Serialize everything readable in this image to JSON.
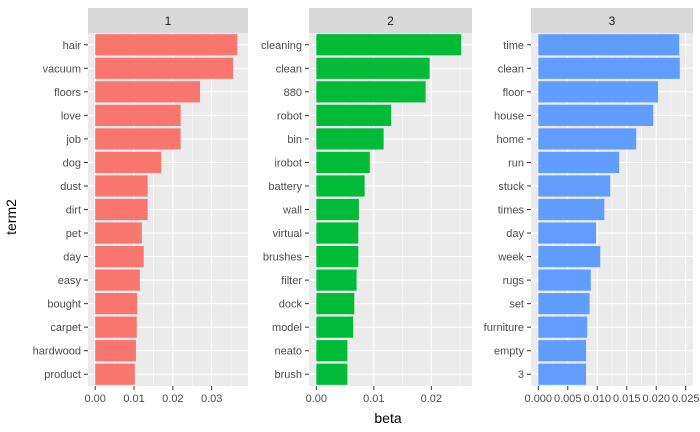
{
  "chart_data": {
    "type": "bar",
    "orientation": "horizontal",
    "faceted": true,
    "xlabel": "beta",
    "ylabel": "term2",
    "grid": true,
    "legend": "none",
    "background": "#EBEBEB",
    "strip_background": "#D9D9D9",
    "panels": [
      {
        "label": "1",
        "color": "#F8766D",
        "xlim": [
          0,
          0.0375
        ],
        "ticks": [
          0,
          0.01,
          0.02,
          0.03
        ],
        "tick_labels": [
          "0.00",
          "0.01",
          "0.02",
          "0.03"
        ],
        "categories": [
          "hair",
          "vacuum",
          "floors",
          "love",
          "job",
          "dog",
          "dust",
          "dirt",
          "pet",
          "day",
          "easy",
          "bought",
          "carpet",
          "hardwood",
          "product"
        ],
        "values": [
          0.0366,
          0.0355,
          0.027,
          0.022,
          0.022,
          0.017,
          0.0135,
          0.0135,
          0.012,
          0.0125,
          0.0115,
          0.0108,
          0.0107,
          0.0105,
          0.0102
        ]
      },
      {
        "label": "2",
        "color": "#00BA38",
        "xlim": [
          0,
          0.0258
        ],
        "ticks": [
          0,
          0.01,
          0.02
        ],
        "tick_labels": [
          "0.00",
          "0.01",
          "0.02"
        ],
        "categories": [
          "cleaning",
          "clean",
          "880",
          "robot",
          "bin",
          "irobot",
          "battery",
          "wall",
          "virtual",
          "brushes",
          "filter",
          "dock",
          "model",
          "neato",
          "brush"
        ],
        "values": [
          0.0252,
          0.0197,
          0.019,
          0.013,
          0.0117,
          0.0093,
          0.0084,
          0.0074,
          0.0073,
          0.0073,
          0.007,
          0.0066,
          0.0064,
          0.0054,
          0.0054
        ]
      },
      {
        "label": "3",
        "color": "#619CFF",
        "xlim": [
          0,
          0.025
        ],
        "ticks": [
          0,
          0.005,
          0.01,
          0.015,
          0.02,
          0.025
        ],
        "tick_labels": [
          "0.000",
          "0.005",
          "0.010",
          "0.015",
          "0.020",
          "0.025"
        ],
        "categories": [
          "time",
          "clean",
          "floor",
          "house",
          "home",
          "run",
          "stuck",
          "times",
          "day",
          "week",
          "rugs",
          "set",
          "furniture",
          "empty",
          "3"
        ],
        "values": [
          0.0239,
          0.024,
          0.0203,
          0.0195,
          0.0166,
          0.0137,
          0.0122,
          0.0112,
          0.0098,
          0.0105,
          0.0089,
          0.0087,
          0.0083,
          0.0081,
          0.0081
        ]
      }
    ]
  }
}
